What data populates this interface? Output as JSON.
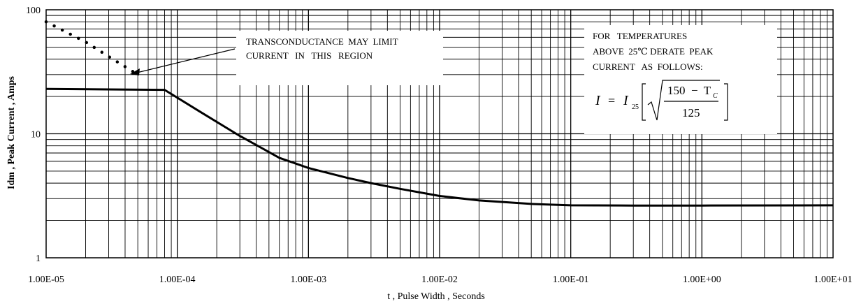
{
  "chart_data": {
    "type": "line",
    "xscale": "log",
    "yscale": "log",
    "xlim": [
      1e-05,
      10
    ],
    "ylim": [
      1,
      100
    ],
    "grid": true,
    "xlabel": "t , Pulse Width , Seconds",
    "ylabel": "Idm , Peak Current , Amps",
    "x_ticks": [
      "1.00E-05",
      "1.00E-04",
      "1.00E-03",
      "1.00E-02",
      "1.00E-01",
      "1.00E+00",
      "1.00E+01"
    ],
    "y_ticks": [
      "1",
      "10",
      "100"
    ],
    "series": [
      {
        "style": "solid",
        "x": [
          1e-05,
          3e-05,
          8e-05,
          0.00015,
          0.0003,
          0.0006,
          0.001,
          0.002,
          0.003,
          0.005,
          0.01,
          0.02,
          0.05,
          0.1,
          0.3,
          1,
          10
        ],
        "y": [
          23,
          22.8,
          22.6,
          15,
          9.6,
          6.4,
          5.3,
          4.4,
          4.0,
          3.6,
          3.15,
          2.9,
          2.72,
          2.65,
          2.64,
          2.64,
          2.65
        ]
      },
      {
        "style": "dotted",
        "x": [
          1e-05,
          2e-05,
          3e-05,
          5e-05
        ],
        "y": [
          80,
          55,
          42,
          30
        ]
      }
    ],
    "annotations": {
      "transconductance": [
        "TRANSCONDUCTANCE  MAY  LIMIT",
        "CURRENT   IN   THIS   REGION"
      ],
      "derate": [
        "FOR   TEMPERATURES",
        "ABOVE  25℃ DERATE  PEAK",
        "CURRENT   AS  FOLLOWS:"
      ],
      "formula": {
        "lhs": "I",
        "eq": "=",
        "i_base": "I",
        "i_sub": "25",
        "numerator": "150  −  T",
        "numerator_sub": "C",
        "denominator": "125"
      }
    }
  }
}
